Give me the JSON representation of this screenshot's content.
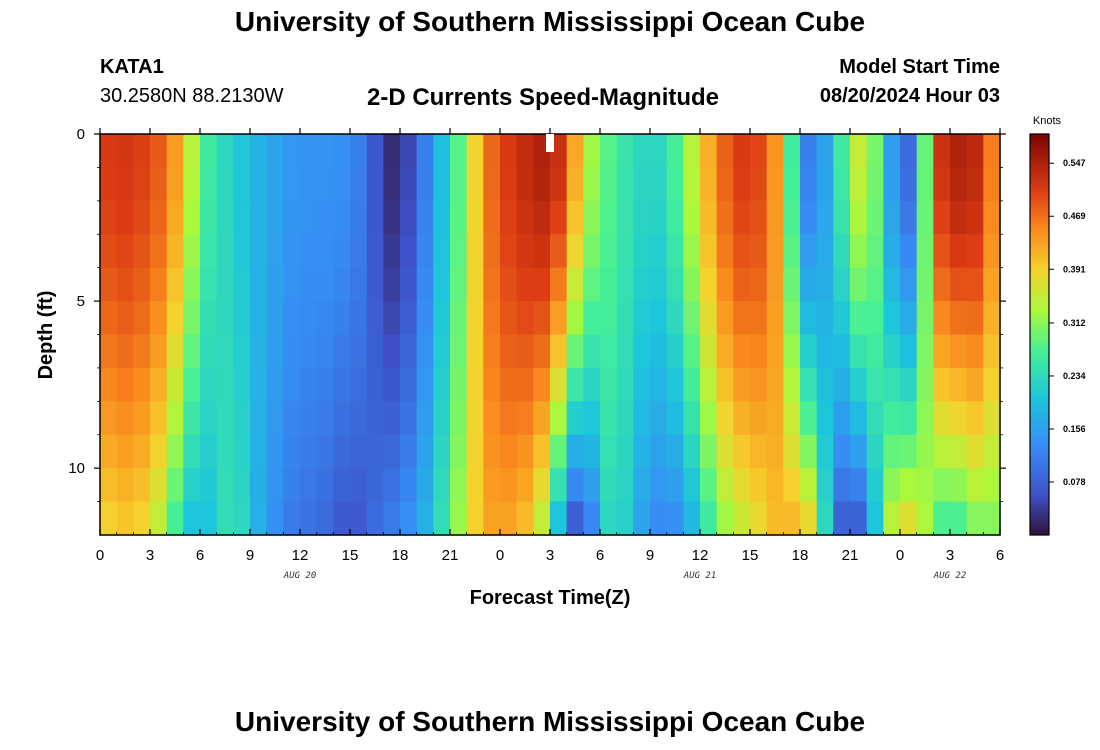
{
  "header": {
    "title": "University of Southern Mississippi Ocean Cube",
    "station_id": "KATA1",
    "coords": "30.2580N  88.2130W",
    "subtitle": "2-D Currents Speed-Magnitude",
    "model_label": "Model Start Time",
    "model_time": "08/20/2024 Hour 03"
  },
  "footer": {
    "title": "University of Southern Mississippi Ocean Cube"
  },
  "chart_data": {
    "type": "heatmap",
    "title": "2-D Currents Speed-Magnitude",
    "xlabel": "Forecast Time(Z)",
    "ylabel": "Depth (ft)",
    "x_range_hours": [
      0,
      54
    ],
    "y_range_ft": [
      0,
      12
    ],
    "x_tick_labels": [
      "0",
      "3",
      "6",
      "9",
      "12",
      "15",
      "18",
      "21",
      "0",
      "3",
      "6",
      "9",
      "12",
      "15",
      "18",
      "21",
      "0",
      "3",
      "6"
    ],
    "y_tick_labels": [
      "0",
      "5",
      "10"
    ],
    "y_tick_values": [
      0,
      5,
      10
    ],
    "date_labels": [
      {
        "text": "AUG 20",
        "hour": 12
      },
      {
        "text": "AUG 21",
        "hour": 36
      },
      {
        "text": "AUG 22",
        "hour": 51
      }
    ],
    "colorbar": {
      "unit": "Knots",
      "min": 0.0,
      "max": 0.59,
      "ticks": [
        "0.547",
        "0.469",
        "0.391",
        "0.312",
        "0.234",
        "0.156",
        "0.078"
      ],
      "tick_values": [
        0.547,
        0.469,
        0.391,
        0.312,
        0.234,
        0.156,
        0.078
      ]
    },
    "depth_rows": [
      0,
      1,
      2,
      3,
      4,
      5,
      6,
      7,
      8,
      9,
      10,
      11
    ],
    "speed_profile_hours": [
      0,
      1,
      2,
      3,
      4,
      5,
      6,
      7,
      8,
      9,
      10,
      11,
      12,
      13,
      14,
      15,
      16,
      17,
      18,
      19,
      20,
      21,
      22,
      23,
      24,
      25,
      26,
      27,
      28,
      29,
      30,
      31,
      32,
      33,
      34,
      35,
      36,
      37,
      38,
      39,
      40,
      41,
      42,
      43,
      44,
      45,
      46,
      47,
      48,
      49,
      50,
      51,
      52,
      53,
      54
    ],
    "surface_speed": [
      0.5,
      0.52,
      0.51,
      0.5,
      0.47,
      0.4,
      0.28,
      0.24,
      0.22,
      0.19,
      0.17,
      0.15,
      0.14,
      0.14,
      0.14,
      0.13,
      0.1,
      0.03,
      0.02,
      0.08,
      0.15,
      0.24,
      0.32,
      0.45,
      0.5,
      0.52,
      0.54,
      0.55,
      0.5,
      0.35,
      0.3,
      0.26,
      0.24,
      0.22,
      0.24,
      0.3,
      0.38,
      0.46,
      0.5,
      0.52,
      0.48,
      0.4,
      0.13,
      0.1,
      0.22,
      0.3,
      0.4,
      0.2,
      0.1,
      0.08,
      0.5,
      0.54,
      0.55,
      0.52,
      0.4
    ],
    "bottom_speed": [
      0.38,
      0.4,
      0.4,
      0.38,
      0.32,
      0.22,
      0.18,
      0.22,
      0.26,
      0.2,
      0.15,
      0.12,
      0.1,
      0.1,
      0.08,
      0.06,
      0.08,
      0.1,
      0.12,
      0.15,
      0.2,
      0.28,
      0.36,
      0.42,
      0.44,
      0.42,
      0.4,
      0.3,
      0.1,
      0.05,
      0.2,
      0.26,
      0.18,
      0.14,
      0.12,
      0.15,
      0.22,
      0.3,
      0.35,
      0.36,
      0.4,
      0.42,
      0.4,
      0.36,
      0.1,
      0.06,
      0.1,
      0.3,
      0.38,
      0.36,
      0.3,
      0.25,
      0.3,
      0.32,
      0.3
    ],
    "marker": {
      "hour": 27,
      "depth_ft": 0
    }
  }
}
